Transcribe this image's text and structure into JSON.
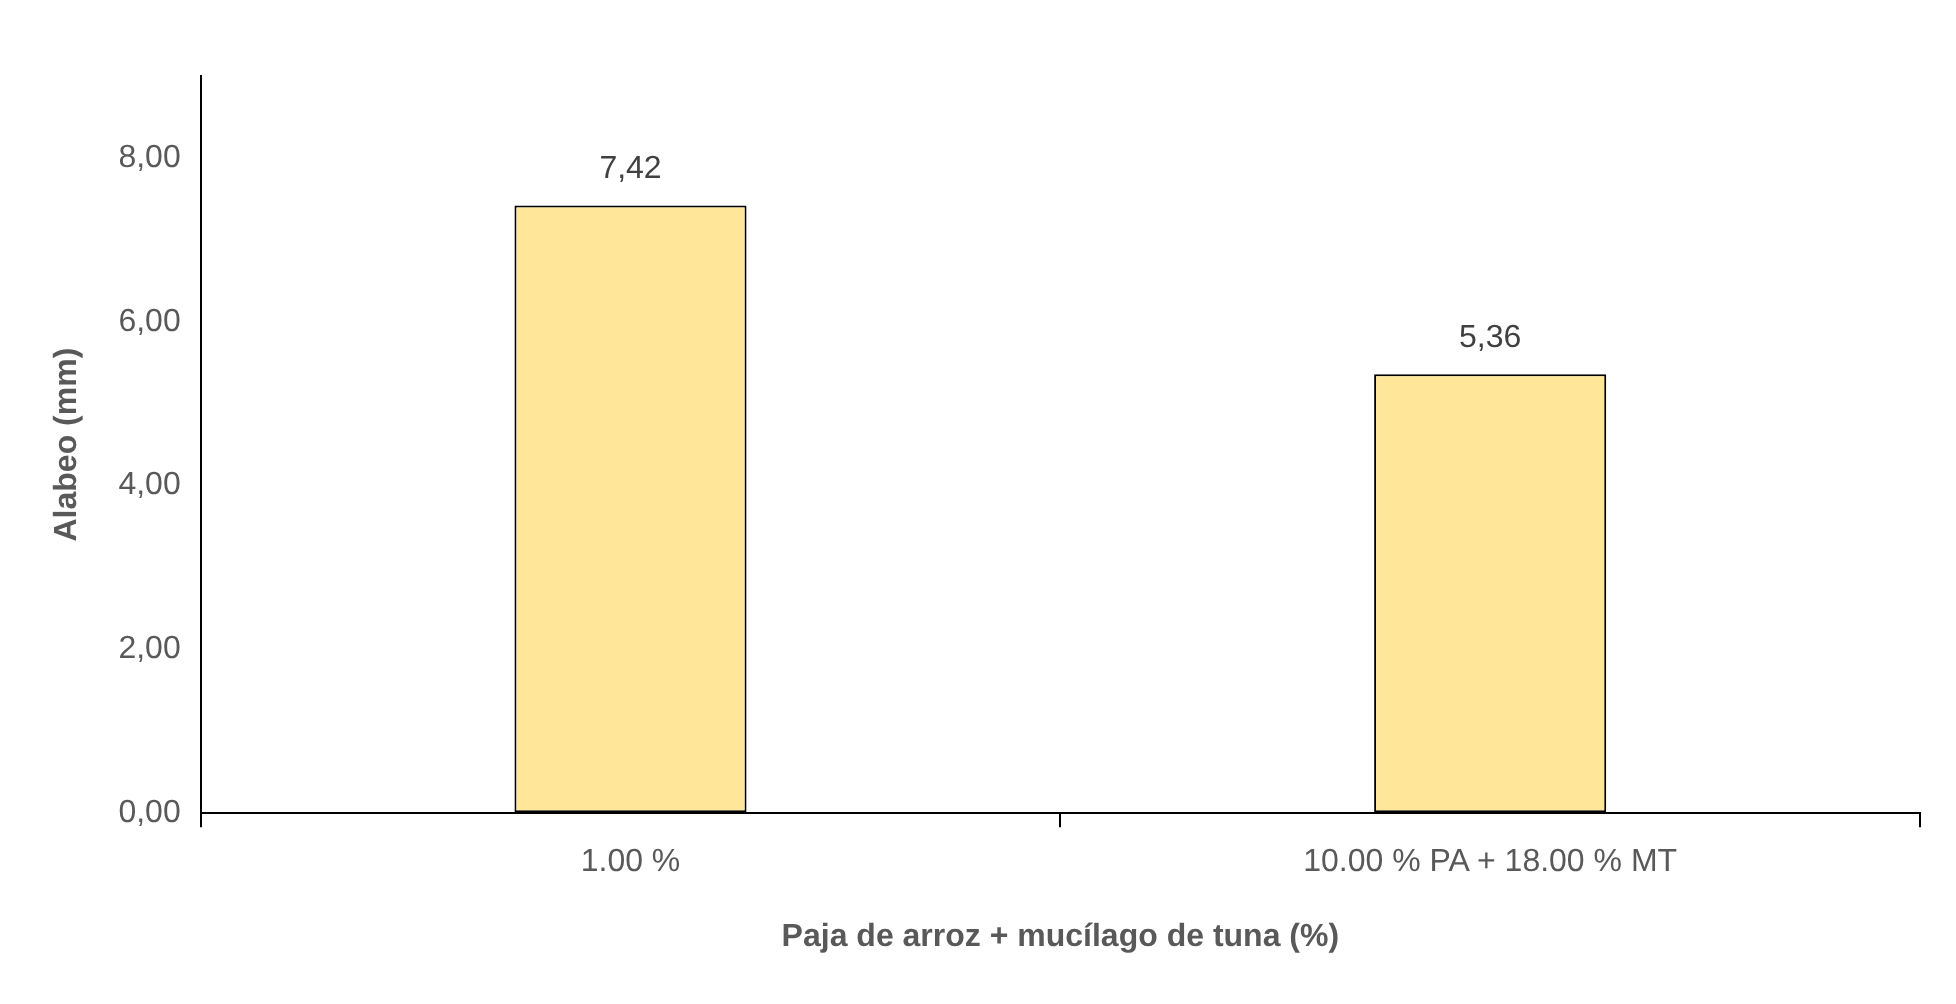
{
  "chart_data": {
    "type": "bar",
    "xlabel": "Paja de arroz + mucílago de tuna (%)",
    "ylabel": "Alabeo (mm)",
    "categories": [
      "1.00 %",
      "10.00 % PA + 18.00 % MT"
    ],
    "values": [
      7.42,
      5.36
    ],
    "color": "#ffe699",
    "value_labels": [
      "7,42",
      "5,36"
    ],
    "ylim": [
      0,
      9
    ],
    "yticks": [
      {
        "value": 0,
        "label": "0,00"
      },
      {
        "value": 2,
        "label": "2,00"
      },
      {
        "value": 4,
        "label": "4,00"
      },
      {
        "value": 6,
        "label": "6,00"
      },
      {
        "value": 8,
        "label": "8,00"
      }
    ],
    "grid": false,
    "legend": false
  }
}
